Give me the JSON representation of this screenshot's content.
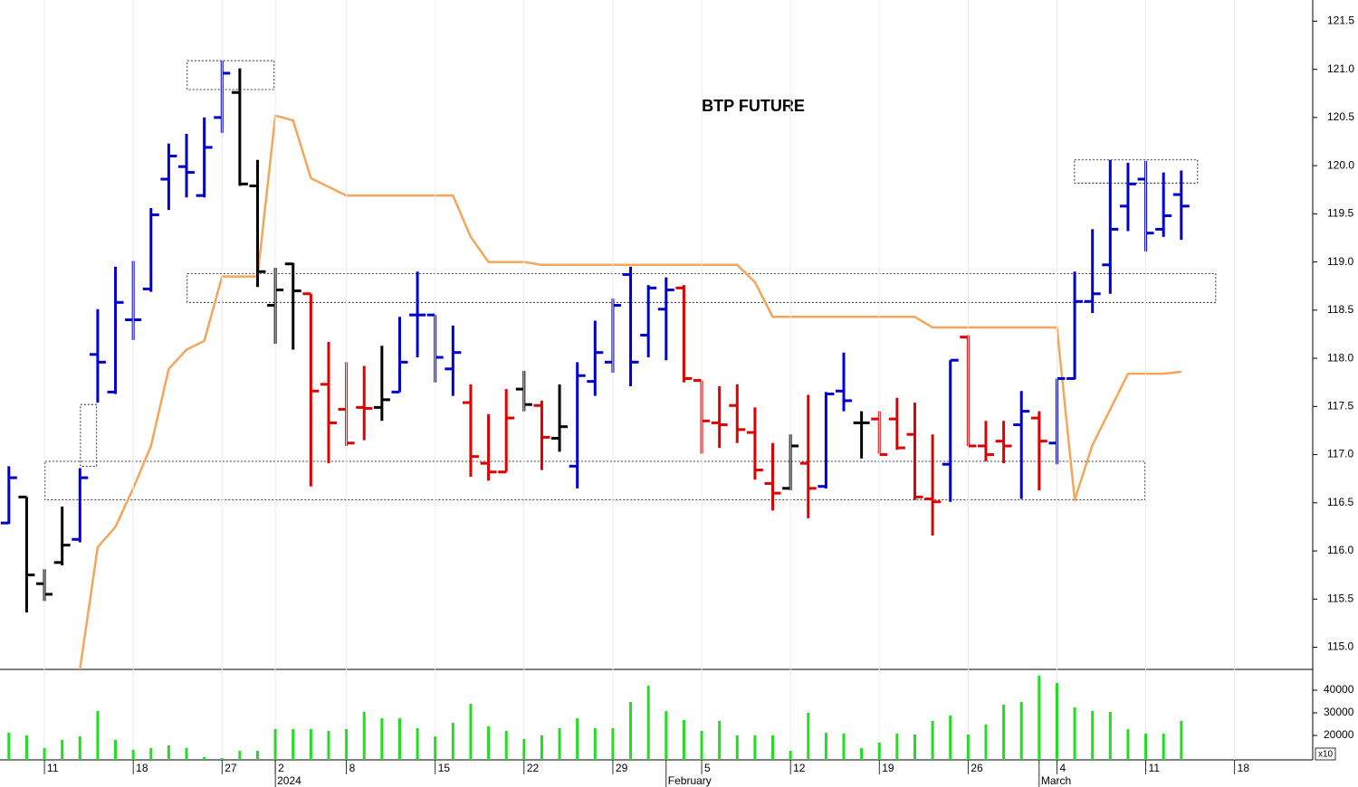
{
  "chart_data": {
    "type": "ohlc",
    "title": "BTP FUTURE",
    "x": [
      0,
      1,
      2,
      3,
      4,
      5,
      6,
      7,
      8,
      9,
      10,
      11,
      12,
      13,
      14,
      15,
      16,
      17,
      18,
      19,
      20,
      21,
      22,
      23,
      24,
      25,
      26,
      27,
      28,
      29,
      30,
      31,
      32,
      33,
      34,
      35,
      36,
      37,
      38,
      39,
      40,
      41,
      42,
      43,
      44,
      45,
      46,
      47,
      48,
      49,
      50,
      51,
      52,
      53,
      54,
      55,
      56,
      57,
      58,
      59,
      60,
      61,
      62,
      63,
      64,
      65,
      66
    ],
    "xlim": [
      -0.5,
      73.4
    ],
    "xticks": [
      {
        "value": 2,
        "label": "11"
      },
      {
        "value": 7,
        "label": "18"
      },
      {
        "value": 12,
        "label": "27"
      },
      {
        "value": 15,
        "label": "2"
      },
      {
        "value": 19,
        "label": "8"
      },
      {
        "value": 24,
        "label": "15"
      },
      {
        "value": 29,
        "label": "22"
      },
      {
        "value": 34,
        "label": "29"
      },
      {
        "value": 39,
        "label": "5"
      },
      {
        "value": 44,
        "label": "12"
      },
      {
        "value": 49,
        "label": "19"
      },
      {
        "value": 54,
        "label": "26"
      },
      {
        "value": 59,
        "label": "4"
      },
      {
        "value": 64,
        "label": "11"
      },
      {
        "value": 69,
        "label": "18"
      }
    ],
    "month_ticks": [
      {
        "value": 15,
        "label": "2024"
      },
      {
        "value": 37,
        "label": "February"
      },
      {
        "value": 58,
        "label": "March"
      }
    ],
    "ylim": [
      114.77,
      121.72
    ],
    "yticks": [
      {
        "value": 115,
        "label": "115.0"
      },
      115.5,
      {
        "value": 116,
        "label": "116.0"
      },
      116.5,
      {
        "value": 117,
        "label": "117.0"
      },
      117.5,
      {
        "value": 118,
        "label": "118.0"
      },
      118.5,
      {
        "value": 119,
        "label": "119.0"
      },
      119.5,
      {
        "value": 120,
        "label": "120.0"
      },
      120.5,
      {
        "value": 121,
        "label": "121.0"
      },
      121.5
    ],
    "open": [
      116.29,
      116.56,
      115.66,
      115.88,
      116.12,
      118.04,
      117.65,
      118.4,
      118.72,
      119.86,
      119.99,
      119.69,
      120.5,
      120.76,
      119.79,
      118.55,
      118.98,
      118.67,
      117.73,
      117.47,
      117.49,
      117.49,
      117.65,
      118.45,
      118.45,
      117.89,
      117.54,
      116.91,
      116.82,
      117.68,
      117.51,
      117.17,
      116.88,
      117.76,
      117.96,
      118.87,
      118.24,
      118.51,
      118.73,
      117.77,
      117.33,
      117.51,
      117.23,
      116.7,
      116.65,
      116.91,
      116.67,
      117.66,
      117.33,
      117.37,
      117.37,
      117.21,
      116.54,
      116.9,
      118.22,
      117.09,
      117.14,
      117.31,
      117.38,
      117.12,
      117.79,
      118.59,
      118.97,
      119.58,
      119.86,
      119.34,
      119.7
    ],
    "high": [
      116.88,
      116.56,
      115.81,
      116.46,
      116.86,
      118.51,
      118.95,
      119.01,
      119.56,
      120.23,
      120.33,
      120.5,
      121.09,
      121.01,
      120.06,
      118.94,
      118.99,
      118.67,
      118.17,
      117.96,
      117.92,
      118.13,
      118.43,
      118.9,
      118.45,
      118.34,
      117.73,
      117.42,
      117.68,
      117.87,
      117.56,
      117.73,
      117.96,
      118.39,
      118.62,
      118.95,
      118.76,
      118.84,
      118.76,
      117.77,
      117.71,
      117.73,
      117.49,
      117.12,
      117.21,
      117.62,
      117.65,
      118.06,
      117.45,
      117.45,
      117.59,
      117.54,
      117.21,
      117.98,
      118.24,
      117.35,
      117.35,
      117.66,
      117.45,
      117.79,
      118.9,
      119.34,
      120.06,
      120.03,
      120.05,
      119.93,
      119.95
    ],
    "low": [
      116.28,
      115.36,
      115.48,
      115.85,
      116.09,
      117.54,
      117.63,
      118.19,
      118.69,
      119.54,
      119.67,
      119.67,
      120.34,
      119.79,
      118.74,
      118.15,
      118.09,
      116.67,
      116.91,
      117.09,
      117.15,
      117.35,
      117.65,
      118.01,
      117.75,
      117.61,
      116.77,
      116.73,
      116.82,
      117.45,
      116.84,
      117.03,
      116.65,
      117.61,
      117.85,
      117.71,
      118.01,
      117.98,
      117.75,
      117.01,
      117.07,
      117.12,
      116.74,
      116.42,
      116.63,
      116.34,
      116.65,
      117.45,
      116.96,
      117.01,
      117.05,
      116.53,
      116.16,
      116.51,
      117.09,
      116.93,
      116.91,
      116.54,
      116.63,
      116.9,
      117.78,
      118.47,
      118.67,
      119.32,
      119.11,
      119.26,
      119.23
    ],
    "close": [
      116.76,
      115.75,
      115.55,
      116.06,
      116.76,
      117.96,
      118.58,
      118.4,
      119.49,
      120.1,
      119.93,
      120.19,
      120.96,
      119.81,
      118.9,
      118.71,
      118.7,
      117.66,
      117.33,
      117.12,
      117.48,
      117.57,
      117.96,
      118.45,
      118.01,
      118.06,
      116.98,
      116.82,
      117.38,
      117.52,
      117.18,
      117.29,
      117.82,
      118.06,
      118.55,
      117.96,
      118.73,
      118.71,
      117.79,
      117.35,
      117.31,
      117.26,
      116.84,
      116.6,
      117.09,
      116.65,
      117.63,
      117.56,
      117.33,
      117.0,
      117.07,
      116.56,
      116.51,
      117.98,
      117.09,
      117.0,
      117.09,
      117.45,
      117.14,
      117.79,
      118.59,
      118.67,
      119.34,
      119.81,
      119.3,
      119.48,
      119.58
    ],
    "colors": [
      "#0000cc",
      "#000000",
      "#000000",
      "#000000",
      "#0000cc",
      "#0000cc",
      "#0000cc",
      "#0000cc",
      "#0000cc",
      "#0000cc",
      "#0000cc",
      "#0000cc",
      "#0000cc",
      "#000000",
      "#000000",
      "#000000",
      "#000000",
      "#e00000",
      "#e00000",
      "#e00000",
      "#e00000",
      "#000000",
      "#0000cc",
      "#0000cc",
      "#0000cc",
      "#0000cc",
      "#e00000",
      "#e00000",
      "#e00000",
      "#000000",
      "#e00000",
      "#000000",
      "#0000cc",
      "#0000cc",
      "#0000cc",
      "#0000cc",
      "#0000cc",
      "#0000cc",
      "#e00000",
      "#e00000",
      "#e00000",
      "#e00000",
      "#e00000",
      "#e00000",
      "#000000",
      "#e00000",
      "#0000cc",
      "#0000cc",
      "#000000",
      "#e00000",
      "#e00000",
      "#e00000",
      "#e00000",
      "#0000cc",
      "#e00000",
      "#e00000",
      "#e00000",
      "#0000cc",
      "#e00000",
      "#0000cc",
      "#0000cc",
      "#0000cc",
      "#0000cc",
      "#0000cc",
      "#0000cc",
      "#0000cc",
      "#0000cc"
    ],
    "overlay": {
      "color": "#f5a55a",
      "values": [
        null,
        null,
        null,
        null,
        114.77,
        116.04,
        116.25,
        116.65,
        117.09,
        117.89,
        118.09,
        118.18,
        118.85,
        118.85,
        118.85,
        120.52,
        120.47,
        119.87,
        119.78,
        119.69,
        119.69,
        119.69,
        119.69,
        119.69,
        119.69,
        119.69,
        119.26,
        119,
        119,
        119,
        118.97,
        118.97,
        118.97,
        118.97,
        118.97,
        118.97,
        118.97,
        118.97,
        118.97,
        118.97,
        118.97,
        118.97,
        118.79,
        118.43,
        118.43,
        118.43,
        118.43,
        118.43,
        118.43,
        118.43,
        118.43,
        118.43,
        118.32,
        118.32,
        118.32,
        118.32,
        118.32,
        118.32,
        118.32,
        118.32,
        116.53,
        117.1,
        117.47,
        117.84,
        117.84,
        117.84,
        117.86
      ]
    },
    "zones": [
      {
        "x": [
          10.04,
          14.93
        ],
        "y": [
          120.79,
          121.09
        ]
      },
      {
        "x": [
          10.04,
          67.94
        ],
        "y": [
          118.58,
          118.88
        ]
      },
      {
        "x": [
          2.04,
          63.96
        ],
        "y": [
          116.53,
          116.93
        ]
      },
      {
        "x": [
          4.03,
          4.94
        ],
        "y": [
          116.88,
          117.52
        ]
      },
      {
        "x": [
          59.99,
          66.92
        ],
        "y": [
          119.82,
          120.06
        ]
      }
    ],
    "volume": {
      "type": "bar",
      "color": "#22dd22",
      "unit_label": "x10",
      "ylim": [
        9200,
        49200
      ],
      "yticks": [
        20000,
        30000,
        40000
      ],
      "values": [
        21200,
        20000,
        14400,
        18000,
        19600,
        30800,
        18000,
        13600,
        14400,
        15600,
        14400,
        10400,
        10000,
        13200,
        13200,
        22800,
        22800,
        22800,
        22000,
        22800,
        30400,
        27600,
        27600,
        23200,
        19600,
        25600,
        34000,
        24000,
        22000,
        18400,
        20000,
        23200,
        27600,
        23200,
        23200,
        34800,
        42000,
        30800,
        26800,
        22000,
        26400,
        20000,
        20000,
        20000,
        13200,
        30000,
        21200,
        20800,
        14400,
        16800,
        20800,
        20400,
        26400,
        28800,
        20400,
        24800,
        33600,
        34800,
        46400,
        43200,
        32400,
        30800,
        30400,
        22800,
        20800,
        20800,
        26400
      ]
    }
  }
}
